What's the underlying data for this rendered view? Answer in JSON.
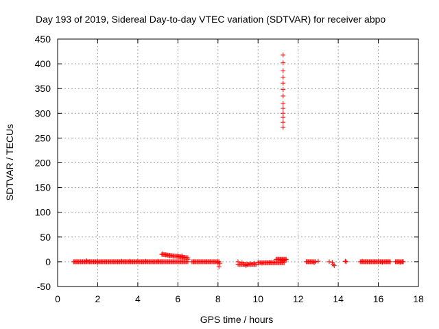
{
  "chart_data": {
    "type": "scatter",
    "title": "Day 193 of 2019, Sidereal Day-to-day VTEC variation (SDTVAR) for receiver abpo",
    "xlabel": "GPS time / hours",
    "ylabel": "SDTVAR / TECUs",
    "xlim": [
      0,
      18
    ],
    "ylim": [
      -50,
      450
    ],
    "xticks": [
      0,
      2,
      4,
      6,
      8,
      10,
      12,
      14,
      16,
      18
    ],
    "yticks": [
      -50,
      0,
      50,
      100,
      150,
      200,
      250,
      300,
      350,
      400,
      450
    ],
    "grid": true,
    "marker": "+",
    "marker_color": "#ff0000",
    "series": [
      {
        "name": "SDTVAR",
        "x": [
          0.85,
          1.0,
          1.2,
          1.4,
          1.45,
          1.6,
          1.8,
          2.0,
          2.2,
          2.4,
          2.6,
          2.8,
          3.0,
          3.2,
          3.4,
          3.6,
          3.8,
          4.0,
          4.2,
          4.4,
          4.6,
          4.8,
          5.0,
          5.2,
          5.25,
          5.4,
          5.6,
          5.8,
          6.0,
          6.1,
          6.2,
          6.3,
          6.4,
          6.5,
          6.8,
          7.0,
          7.2,
          7.4,
          7.6,
          7.8,
          8.0,
          8.05,
          8.1,
          9.0,
          9.2,
          9.3,
          9.4,
          9.5,
          9.6,
          9.7,
          9.8,
          10.0,
          10.2,
          10.4,
          10.6,
          10.8,
          11.0,
          11.1,
          11.2,
          11.3,
          11.4,
          11.25,
          11.25,
          11.25,
          11.25,
          11.25,
          11.25,
          11.25,
          11.25,
          11.25,
          11.25,
          11.25,
          11.25,
          11.25,
          11.25,
          12.5,
          12.6,
          12.7,
          12.8,
          13.0,
          13.55,
          13.7,
          13.75,
          13.8,
          14.35,
          14.4,
          15.2,
          15.3,
          15.4,
          15.6,
          15.8,
          16.0,
          16.2,
          16.4,
          16.5,
          16.9,
          17.0,
          17.1,
          17.2
        ],
        "y": [
          0,
          0,
          0,
          0,
          2,
          0,
          0,
          -1,
          0,
          0,
          0,
          0,
          0,
          1,
          0,
          1,
          0,
          1,
          0,
          1,
          0,
          0,
          1,
          0,
          16,
          14,
          12,
          11,
          12,
          10,
          12,
          8,
          8,
          5,
          0,
          0,
          0,
          0,
          0,
          0,
          -2,
          -10,
          -3,
          0,
          -2,
          -5,
          -8,
          -6,
          -4,
          -5,
          -3,
          -2,
          -3,
          -2,
          -1,
          -1,
          5,
          4,
          3,
          2,
          4,
          272,
          282,
          292,
          300,
          310,
          320,
          335,
          348,
          361,
          373,
          386,
          402,
          418,
          3,
          0,
          0,
          0,
          -2,
          1,
          0,
          -1,
          -5,
          -8,
          1,
          0,
          1,
          0,
          0,
          0,
          0,
          0,
          -1,
          0,
          0,
          0,
          0,
          -1,
          0
        ]
      }
    ],
    "dense_segments": [
      {
        "x_start": 0.8,
        "x_end": 5.15,
        "y": 0
      },
      {
        "x_start": 5.2,
        "x_end": 6.5,
        "y_start": 15,
        "y_end": 8
      },
      {
        "x_start": 5.2,
        "x_end": 6.5,
        "y": 0
      },
      {
        "x_start": 6.7,
        "x_end": 8.05,
        "y": 0
      },
      {
        "x_start": 9.0,
        "x_end": 9.9,
        "y": -5
      },
      {
        "x_start": 10.0,
        "x_end": 11.3,
        "y": -2
      },
      {
        "x_start": 10.9,
        "x_end": 11.4,
        "y": 5
      },
      {
        "x_start": 12.4,
        "x_end": 12.85,
        "y": 0
      },
      {
        "x_start": 15.1,
        "x_end": 16.6,
        "y": 0
      },
      {
        "x_start": 16.85,
        "x_end": 17.25,
        "y": 0
      }
    ]
  }
}
